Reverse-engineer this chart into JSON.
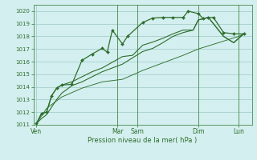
{
  "background_color": "#d4efef",
  "grid_color": "#9dc8c8",
  "line_color": "#2d6e2d",
  "xlabel": "Pression niveau de la mer( hPa )",
  "ylim": [
    1011,
    1020.5
  ],
  "yticks": [
    1011,
    1012,
    1013,
    1014,
    1015,
    1016,
    1017,
    1018,
    1019,
    1020
  ],
  "xlim": [
    -0.3,
    21.3
  ],
  "day_labels": [
    "Ven",
    "Mar",
    "Sam",
    "Dim",
    "Lun"
  ],
  "day_positions": [
    0,
    8,
    10,
    16,
    20
  ],
  "s1_x": [
    0,
    0.5,
    1.0,
    1.5,
    2.0,
    2.5,
    3.5,
    4.5,
    5.5,
    6.5,
    7.0,
    7.5,
    8.5,
    9.0,
    10.5,
    11.5,
    12.5,
    13.5,
    14.5,
    15.0,
    16.0,
    16.5,
    17.0,
    17.5,
    18.5,
    19.5,
    20.5
  ],
  "s1_y": [
    1011.1,
    1011.9,
    1012.0,
    1013.3,
    1013.9,
    1014.15,
    1014.2,
    1016.1,
    1016.6,
    1017.05,
    1016.75,
    1018.5,
    1017.4,
    1018.0,
    1019.1,
    1019.45,
    1019.5,
    1019.5,
    1019.5,
    1020.0,
    1019.8,
    1019.4,
    1019.5,
    1019.5,
    1018.3,
    1018.2,
    1018.2
  ],
  "s2_x": [
    0,
    0.5,
    1.0,
    1.5,
    2.0,
    2.5,
    3.5,
    4.5,
    5.5,
    6.5,
    7.5,
    8.5,
    9.5,
    10.5,
    11.5,
    12.5,
    13.5,
    14.5,
    15.5,
    16.0,
    17.0,
    17.5,
    18.5,
    19.5,
    20.5
  ],
  "s2_y": [
    1011.1,
    1011.9,
    1012.0,
    1013.3,
    1013.9,
    1014.15,
    1014.4,
    1014.8,
    1015.2,
    1015.5,
    1015.95,
    1016.4,
    1016.5,
    1017.3,
    1017.55,
    1017.85,
    1018.2,
    1018.5,
    1018.5,
    1019.3,
    1019.5,
    1019.0,
    1018.0,
    1017.5,
    1018.2
  ],
  "s3_x": [
    0,
    0.5,
    1.0,
    1.5,
    2.0,
    2.5,
    3.5,
    4.5,
    5.5,
    6.5,
    7.5,
    8.5,
    9.5,
    10.5,
    11.5,
    12.5,
    13.5,
    14.5,
    15.5,
    16.0,
    17.0,
    17.5,
    18.5,
    19.5,
    20.5
  ],
  "s3_y": [
    1011.1,
    1011.5,
    1011.8,
    1012.4,
    1013.0,
    1013.5,
    1014.1,
    1014.4,
    1014.8,
    1015.2,
    1015.5,
    1015.8,
    1016.3,
    1016.8,
    1017.05,
    1017.5,
    1018.0,
    1018.3,
    1018.5,
    1019.3,
    1019.5,
    1019.0,
    1018.0,
    1017.5,
    1018.2
  ],
  "s4_x": [
    0,
    1.0,
    2.5,
    4.5,
    6.5,
    8.5,
    10.5,
    12.5,
    14.5,
    16.0,
    18.0,
    20.0,
    20.5
  ],
  "s4_y": [
    1011.1,
    1012.3,
    1013.2,
    1013.9,
    1014.4,
    1014.6,
    1015.3,
    1015.9,
    1016.5,
    1017.0,
    1017.5,
    1018.0,
    1018.2
  ]
}
